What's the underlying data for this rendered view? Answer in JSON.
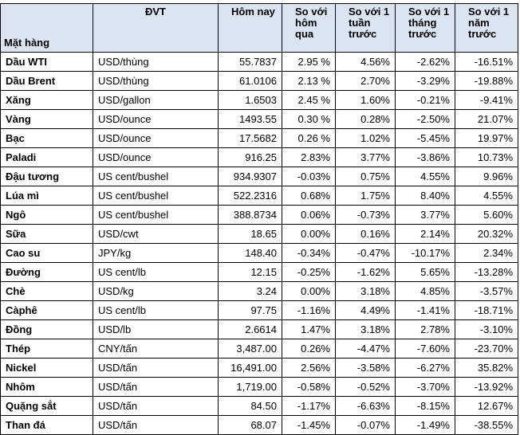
{
  "table": {
    "header": [
      "Mặt hàng",
      "ĐVT",
      "Hôm nay",
      "So với\nhôm\nqua",
      "So với 1\ntuần\ntrước",
      "So với 1\ntháng\ntrước",
      "So với 1\nnăm\ntrước"
    ],
    "rows": [
      [
        "Dầu WTI",
        "USD/thùng",
        "55.7837",
        "2.95 %",
        "4.56%",
        "-2.62%",
        "-16.51%"
      ],
      [
        "Dầu Brent",
        "USD/thùng",
        "61.0106",
        "2.13 %",
        "2.70%",
        "-3.29%",
        "-19.88%"
      ],
      [
        "Xăng",
        "USD/gallon",
        "1.6503",
        "2.45 %",
        "1.60%",
        "-0.21%",
        "-9.41%"
      ],
      [
        "Vàng",
        "USD/ounce",
        "1493.55",
        "0.30 %",
        "0.28%",
        "-2.50%",
        "21.07%"
      ],
      [
        "Bạc",
        "USD/ounce",
        "17.5682",
        "0.26 %",
        "1.02%",
        "-5.45%",
        "19.97%"
      ],
      [
        "Paladi",
        "USD/ounce",
        "916.25",
        "2.83%",
        "3.77%",
        "-3.86%",
        "10.73%"
      ],
      [
        "Đậu tương",
        "US cent/bushel",
        "934.9307",
        "-0.03%",
        "0.75%",
        "4.55%",
        "9.96%"
      ],
      [
        "Lúa mì",
        "US cent/bushel",
        "522.2316",
        "0.68%",
        "1.75%",
        "8.40%",
        "4.55%"
      ],
      [
        "Ngô",
        "US cent/bushel",
        "388.8734",
        "0.06%",
        "-0.73%",
        "3.77%",
        "5.60%"
      ],
      [
        "Sữa",
        "USD/cwt",
        "18.65",
        "0.00%",
        "0.16%",
        "2.14%",
        "20.32%"
      ],
      [
        "Cao su",
        "JPY/kg",
        "148.40",
        "-0.34%",
        "-0.47%",
        "-10.17%",
        "2.34%"
      ],
      [
        "Đường",
        "US cent/lb",
        "12.15",
        "-0.25%",
        "-1.62%",
        "5.65%",
        "-13.28%"
      ],
      [
        "Chè",
        "USD/kg",
        "3.24",
        "0.00%",
        "3.18%",
        "4.85%",
        "-3.57%"
      ],
      [
        "Càphê",
        "US cent/lb",
        "97.75",
        "-1.16%",
        "4.49%",
        "-1.41%",
        "-18.71%"
      ],
      [
        "Đồng",
        "USD/lb",
        "2.6614",
        "1.47%",
        "3.18%",
        "2.78%",
        "-3.10%"
      ],
      [
        "Thép",
        "CNY/tấn",
        "3,487.00",
        "0.26%",
        "-4.47%",
        "-7.60%",
        "-23.70%"
      ],
      [
        "Nickel",
        "USD/tấn",
        "16,491.00",
        "2.56%",
        "-3.58%",
        "-6.27%",
        "35.82%"
      ],
      [
        "Nhôm",
        "USD/tấn",
        "1,719.00",
        "-0.58%",
        "-0.52%",
        "-3.70%",
        "-13.92%"
      ],
      [
        "Quặng sắt",
        "USD/tấn",
        "84.50",
        "-1.17%",
        "-6.63%",
        "-8.15%",
        "12.67%"
      ],
      [
        "Than đá",
        "USD/tấn",
        "68.07",
        "-1.45%",
        "-0.07%",
        "-1.49%",
        "-38.55%"
      ]
    ]
  }
}
